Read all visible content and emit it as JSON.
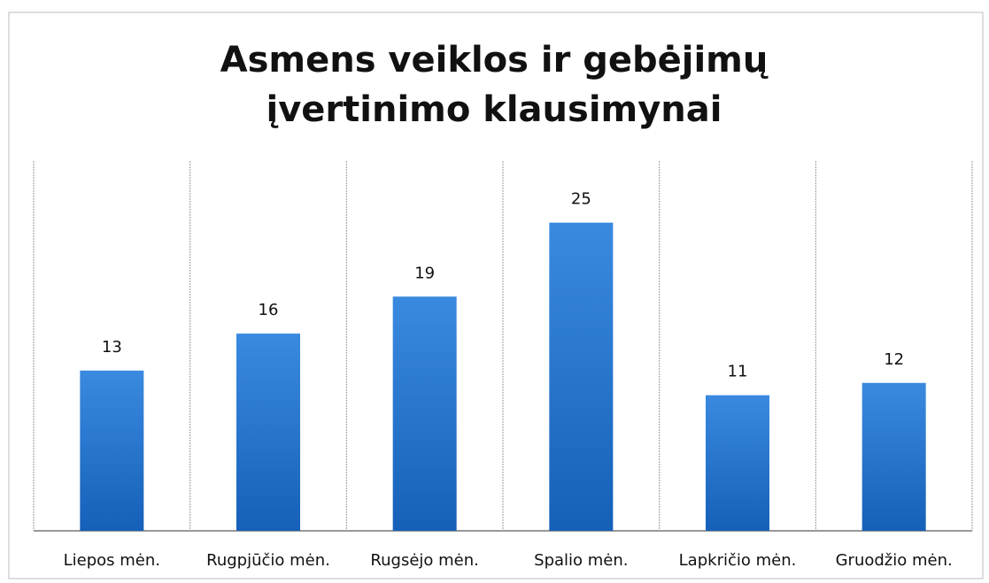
{
  "chart_data": {
    "type": "bar",
    "title": "Asmens veiklos ir gebėjimų įvertinimo klausimynai",
    "categories": [
      "Liepos mėn.",
      "Rugpjūčio mėn.",
      "Rugsėjo mėn.",
      "Spalio mėn.",
      "Lapkričio mėn.",
      "Gruodžio mėn."
    ],
    "values": [
      13,
      16,
      19,
      25,
      11,
      12
    ],
    "color": "#1f6fcc",
    "ylim": [
      0,
      30
    ],
    "grid": false
  }
}
